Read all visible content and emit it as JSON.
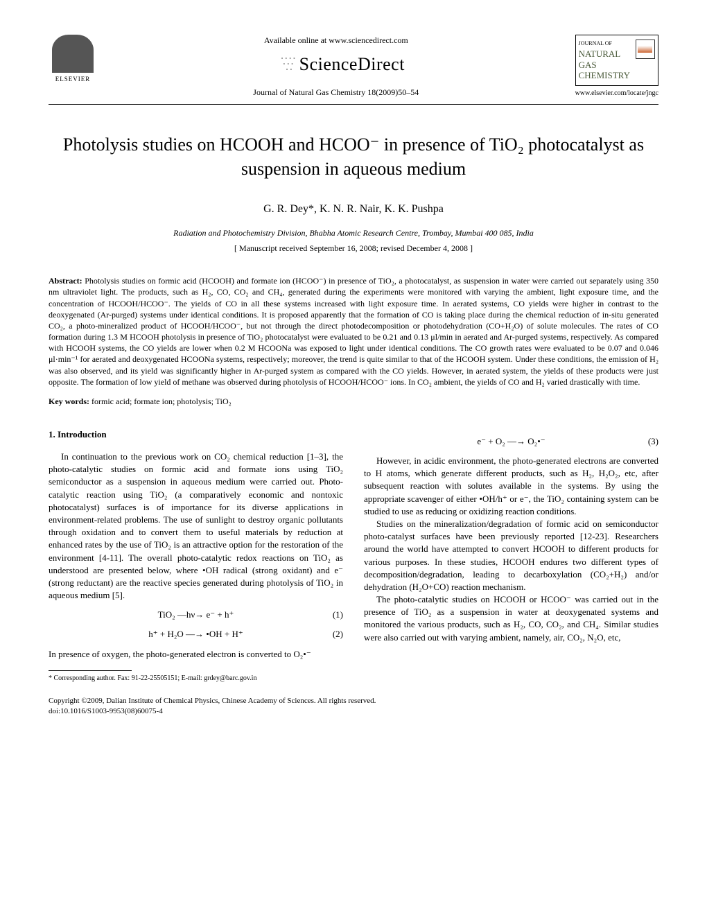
{
  "header": {
    "available_online": "Available online at www.sciencedirect.com",
    "sciencedirect": "ScienceDirect",
    "journal_ref": "Journal of Natural Gas Chemistry 18(2009)50–54",
    "elsevier": "ELSEVIER",
    "journal_box": {
      "subtitle": "JOURNAL OF",
      "line1": "NATURAL GAS",
      "line2": "CHEMISTRY"
    },
    "locate_url": "www.elsevier.com/locate/jngc"
  },
  "title": "Photolysis studies on HCOOH and HCOO⁻ in presence of TiO₂ photocatalyst as suspension in aqueous medium",
  "authors": "G. R. Dey*,      K. N. R. Nair,      K. K. Pushpa",
  "affiliation": "Radiation and Photochemistry Division, Bhabha Atomic Research Centre, Trombay, Mumbai 400 085, India",
  "manuscript_info": "[ Manuscript received September 16, 2008; revised December 4, 2008 ]",
  "abstract_label": "Abstract:",
  "abstract": "Photolysis studies on formic acid (HCOOH) and formate ion (HCOO⁻) in presence of TiO₂, a photocatalyst, as suspension in water were carried out separately using 350 nm ultraviolet light. The products, such as H₂, CO, CO₂ and CH₄, generated during the experiments were monitored with varying the ambient, light exposure time, and the concentration of HCOOH/HCOO⁻. The yields of CO in all these systems increased with light exposure time. In aerated systems, CO yields were higher in contrast to the deoxygenated (Ar-purged) systems under identical conditions. It is proposed apparently that the formation of CO is taking place during the chemical reduction of in-situ generated CO₂, a photo-mineralized product of HCOOH/HCOO⁻, but not through the direct photodecomposition or photodehydration (CO+H₂O) of solute molecules. The rates of CO formation during 1.3 M HCOOH photolysis in presence of TiO₂ photocatalyst were evaluated to be 0.21 and 0.13 μl/min in aerated and Ar-purged systems, respectively. As compared with HCOOH systems, the CO yields are lower when 0.2 M HCOONa was exposed to light under identical conditions. The CO growth rates were evaluated to be 0.07 and 0.046 μl·min⁻¹ for aerated and deoxygenated HCOONa systems, respectively; moreover, the trend is quite similar to that of the HCOOH system. Under these conditions, the emission of H₂ was also observed, and its yield was significantly higher in Ar-purged system as compared with the CO yields. However, in aerated system, the yields of these products were just opposite. The formation of low yield of methane was observed during photolysis of HCOOH/HCOO⁻ ions. In CO₂ ambient, the yields of CO and H₂ varied drastically with time.",
  "keywords_label": "Key words:",
  "keywords": "formic acid; formate ion; photolysis; TiO₂",
  "section1_heading": "1. Introduction",
  "col1_p1": "In continuation to the previous work on CO₂ chemical reduction [1–3], the photo-catalytic studies on formic acid and formate ions using TiO₂ semiconductor as a suspension in aqueous medium were carried out. Photo-catalytic reaction using TiO₂ (a comparatively economic and nontoxic photocatalyst) surfaces is of importance for its diverse applications in environment-related problems. The use of sunlight to destroy organic pollutants through oxidation and to convert them to useful materials by reduction at enhanced rates by the use of TiO₂ is an attractive option for the restoration of the environment [4-11]. The overall photo-catalytic redox reactions on TiO₂ as understood are presented below, where •OH radical (strong oxidant) and e⁻ (strong reductant) are the reactive species generated during photolysis of TiO₂ in aqueous medium [5].",
  "eq1": "TiO₂ —hν→ e⁻ + h⁺",
  "eq1_num": "(1)",
  "eq2": "h⁺ + H₂O —→ •OH + H⁺",
  "eq2_num": "(2)",
  "col1_p2": "In presence of oxygen, the photo-generated electron is converted to O₂•⁻",
  "eq3": "e⁻ + O₂ —→ O₂•⁻",
  "eq3_num": "(3)",
  "col2_p1": "However, in acidic environment, the photo-generated electrons are converted to H atoms, which generate different products, such as H₂, H₂O₂, etc, after subsequent reaction with solutes available in the systems. By using the appropriate scavenger of either •OH/h⁺ or e⁻, the TiO₂ containing system can be studied to use as reducing or oxidizing reaction conditions.",
  "col2_p2": "Studies on the mineralization/degradation of formic acid on semiconductor photo-catalyst surfaces have been previously reported [12-23]. Researchers around the world have attempted to convert HCOOH to different products for various purposes. In these studies, HCOOH endures two different types of decomposition/degradation, leading to decarboxylation (CO₂+H₂) and/or dehydration (H₂O+CO) reaction mechanism.",
  "col2_p3": "The photo-catalytic studies on HCOOH or HCOO⁻ was carried out in the presence of TiO₂ as a suspension in water at deoxygenated systems and monitored the various products, such as H₂, CO, CO₂, and CH₄. Similar studies were also carried out with varying ambient, namely, air, CO₂, N₂O, etc,",
  "footnote": "* Corresponding author. Fax: 91-22-25505151; E-mail: grdey@barc.gov.in",
  "copyright_line1": "Copyright ©2009, Dalian Institute of Chemical Physics, Chinese Academy of Sciences. All rights reserved.",
  "copyright_line2": "doi:10.1016/S1003-9953(08)60075-4"
}
